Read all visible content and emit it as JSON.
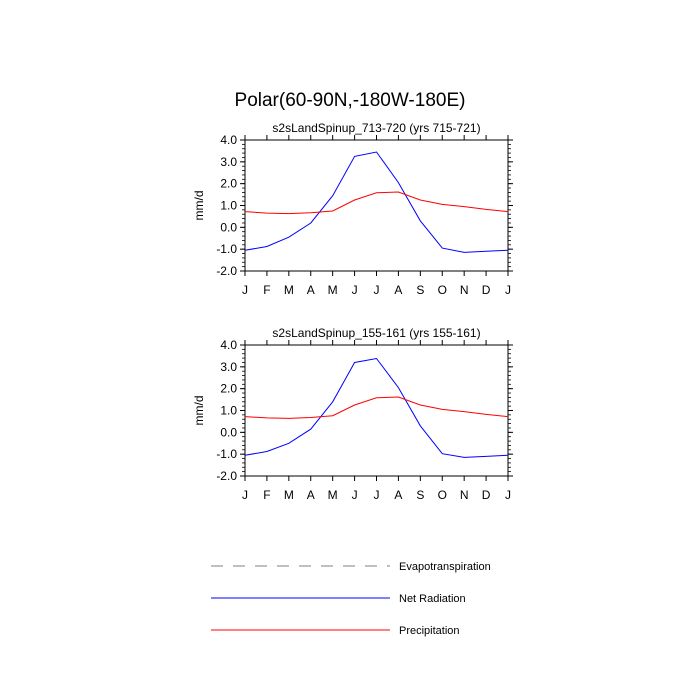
{
  "figure_title": "Polar(60-90N,-180W-180E)",
  "chart_data": [
    {
      "type": "line",
      "title": "s2sLandSpinup_713-720 (yrs 715-721)",
      "xlabel": "",
      "ylabel": "mm/d",
      "ylim": [
        -2.0,
        4.0
      ],
      "yticks": [
        "4.0",
        "3.0",
        "2.0",
        "1.0",
        "0.0",
        "-1.0",
        "-2.0"
      ],
      "categories": [
        "J",
        "F",
        "M",
        "A",
        "M",
        "J",
        "J",
        "A",
        "S",
        "O",
        "N",
        "D",
        "J"
      ],
      "series": [
        {
          "name": "Net Radiation",
          "color": "#0000ff",
          "values": [
            -1.05,
            -0.88,
            -0.45,
            0.2,
            1.45,
            3.25,
            3.45,
            2.05,
            0.3,
            -0.95,
            -1.15,
            -1.1,
            -1.05
          ]
        },
        {
          "name": "Precipitation",
          "color": "#ff0000",
          "values": [
            0.72,
            0.65,
            0.63,
            0.67,
            0.75,
            1.25,
            1.58,
            1.62,
            1.25,
            1.05,
            0.95,
            0.82,
            0.72
          ]
        }
      ]
    },
    {
      "type": "line",
      "title": "s2sLandSpinup_155-161 (yrs 155-161)",
      "xlabel": "",
      "ylabel": "mm/d",
      "ylim": [
        -2.0,
        4.0
      ],
      "yticks": [
        "4.0",
        "3.0",
        "2.0",
        "1.0",
        "0.0",
        "-1.0",
        "-2.0"
      ],
      "categories": [
        "J",
        "F",
        "M",
        "A",
        "M",
        "J",
        "J",
        "A",
        "S",
        "O",
        "N",
        "D",
        "J"
      ],
      "series": [
        {
          "name": "Net Radiation",
          "color": "#0000ff",
          "values": [
            -1.05,
            -0.88,
            -0.5,
            0.15,
            1.4,
            3.2,
            3.38,
            2.05,
            0.3,
            -0.98,
            -1.15,
            -1.1,
            -1.05
          ]
        },
        {
          "name": "Precipitation",
          "color": "#ff0000",
          "values": [
            0.72,
            0.66,
            0.64,
            0.68,
            0.76,
            1.25,
            1.58,
            1.62,
            1.25,
            1.05,
            0.95,
            0.82,
            0.72
          ]
        }
      ]
    }
  ],
  "legend": [
    {
      "label": "Evapotranspiration",
      "color": "#999999",
      "style": "dashed"
    },
    {
      "label": "Net Radiation",
      "color": "#0000ff",
      "style": "solid"
    },
    {
      "label": "Precipitation",
      "color": "#ff0000",
      "style": "solid"
    }
  ]
}
